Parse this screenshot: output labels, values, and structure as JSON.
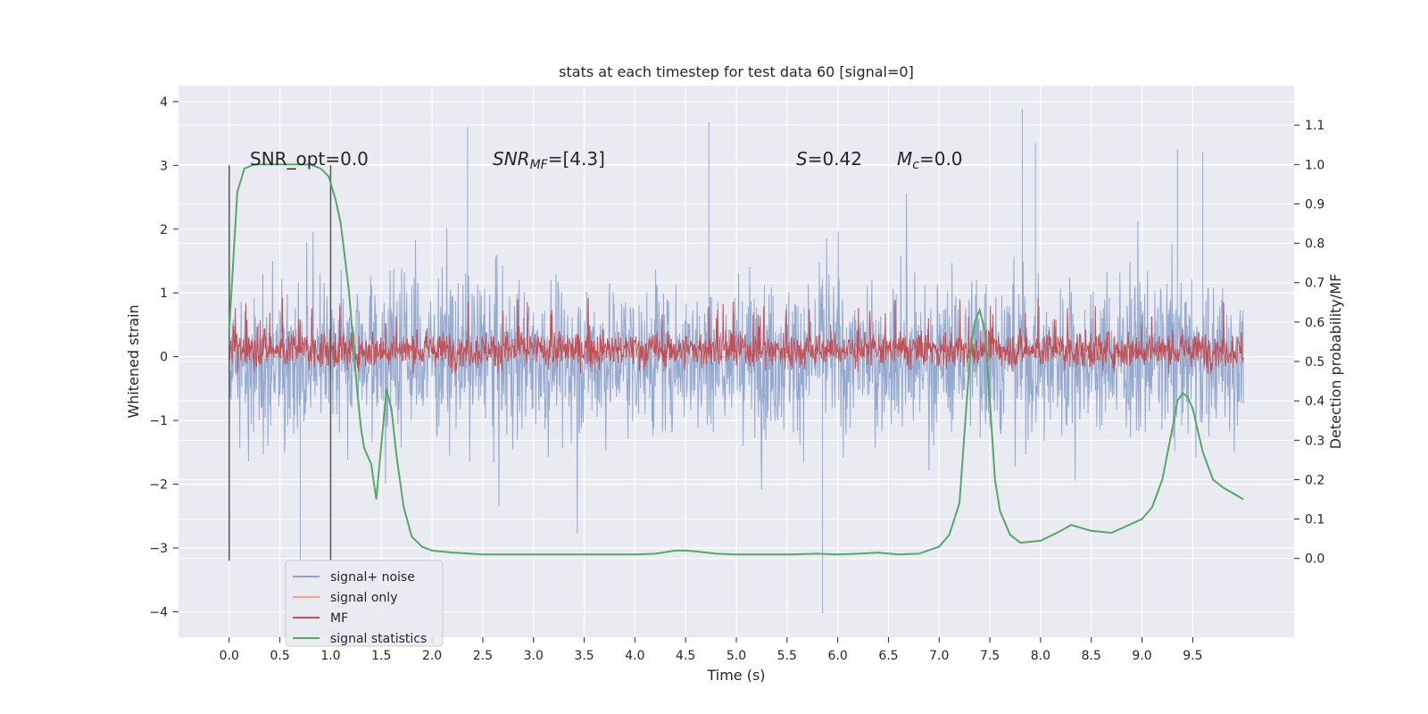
{
  "chart_data": {
    "type": "line",
    "title": "stats at each timestep for test data 60 [signal=0]",
    "xlabel": "Time (s)",
    "ylabel": "Whitened strain",
    "y2label": "Detection probability/MF",
    "xlim": [
      -0.5,
      10.5
    ],
    "ylim": [
      -4.4,
      4.25
    ],
    "y2lim": [
      -0.2,
      1.2
    ],
    "xticks": [
      "0.0",
      "0.5",
      "1.0",
      "1.5",
      "2.0",
      "2.5",
      "3.0",
      "3.5",
      "4.0",
      "4.5",
      "5.0",
      "5.5",
      "6.0",
      "6.5",
      "7.0",
      "7.5",
      "8.0",
      "8.5",
      "9.0",
      "9.5"
    ],
    "yticks": [
      "4",
      "3",
      "2",
      "1",
      "0",
      "−1",
      "−2",
      "−3",
      "−4"
    ],
    "y2ticks": [
      "1.1",
      "1.0",
      "0.9",
      "0.8",
      "0.7",
      "0.6",
      "0.5",
      "0.4",
      "0.3",
      "0.2",
      "0.1",
      "0.0"
    ],
    "grid": true,
    "legend_position": "lower-left",
    "annotations": {
      "snr_opt": "SNR_opt=0.0",
      "snr_mf_base": "SNR",
      "snr_mf_sub": "MF",
      "snr_mf_value": "=[4.3]",
      "s_label": "S",
      "s_value": "=0.42",
      "mc_base": "M",
      "mc_sub": "c",
      "mc_value": "=0.0"
    },
    "vertical_lines": [
      0.0,
      1.0
    ],
    "series": [
      {
        "name": "signal+ noise",
        "color": "#8fa5cc",
        "axis": "left",
        "noise": {
          "x_range": [
            0.0,
            10.0
          ],
          "center": 0.0,
          "typical_amplitude": 1.1,
          "max_amplitude": 4.0
        },
        "peaks": [
          [
            4.73,
            3.67
          ],
          [
            7.82,
            3.88
          ],
          [
            5.85,
            -4.02
          ],
          [
            0.7,
            -3.2
          ],
          [
            2.35,
            3.6
          ],
          [
            7.95,
            3.35
          ],
          [
            9.35,
            3.25
          ],
          [
            9.6,
            3.2
          ]
        ]
      },
      {
        "name": "signal only",
        "color": "#e8a58a",
        "axis": "left",
        "values_constant": 0.0
      },
      {
        "name": "MF",
        "color": "#c44e52",
        "axis": "right",
        "noise": {
          "x_range": [
            0.0,
            10.0
          ],
          "center": 0.53,
          "half_width": 0.055,
          "max_value": 0.67
        }
      },
      {
        "name": "signal statistics",
        "color": "#55a868",
        "axis": "right",
        "x": [
          0.0,
          0.08,
          0.15,
          0.25,
          0.4,
          0.6,
          0.8,
          0.9,
          0.98,
          1.05,
          1.1,
          1.18,
          1.26,
          1.3,
          1.33,
          1.4,
          1.45,
          1.5,
          1.55,
          1.6,
          1.65,
          1.72,
          1.8,
          1.9,
          2.0,
          2.2,
          2.5,
          3.0,
          3.5,
          4.0,
          4.2,
          4.4,
          4.5,
          4.6,
          4.8,
          5.0,
          5.5,
          5.8,
          6.0,
          6.2,
          6.4,
          6.6,
          6.8,
          7.0,
          7.1,
          7.2,
          7.25,
          7.3,
          7.35,
          7.4,
          7.45,
          7.5,
          7.55,
          7.6,
          7.7,
          7.8,
          8.0,
          8.2,
          8.3,
          8.5,
          8.7,
          9.0,
          9.1,
          9.2,
          9.3,
          9.35,
          9.4,
          9.45,
          9.5,
          9.6,
          9.7,
          9.8,
          10.0
        ],
        "y": [
          0.58,
          0.93,
          0.99,
          1.0,
          1.0,
          1.0,
          1.0,
          0.99,
          0.97,
          0.91,
          0.85,
          0.68,
          0.43,
          0.33,
          0.28,
          0.24,
          0.15,
          0.29,
          0.43,
          0.38,
          0.26,
          0.13,
          0.055,
          0.03,
          0.02,
          0.015,
          0.01,
          0.01,
          0.01,
          0.01,
          0.012,
          0.02,
          0.02,
          0.018,
          0.012,
          0.01,
          0.01,
          0.012,
          0.01,
          0.012,
          0.015,
          0.01,
          0.012,
          0.03,
          0.06,
          0.14,
          0.32,
          0.5,
          0.6,
          0.63,
          0.58,
          0.4,
          0.2,
          0.12,
          0.06,
          0.04,
          0.045,
          0.07,
          0.085,
          0.07,
          0.065,
          0.1,
          0.13,
          0.2,
          0.33,
          0.4,
          0.42,
          0.41,
          0.38,
          0.27,
          0.2,
          0.18,
          0.15
        ]
      }
    ]
  }
}
